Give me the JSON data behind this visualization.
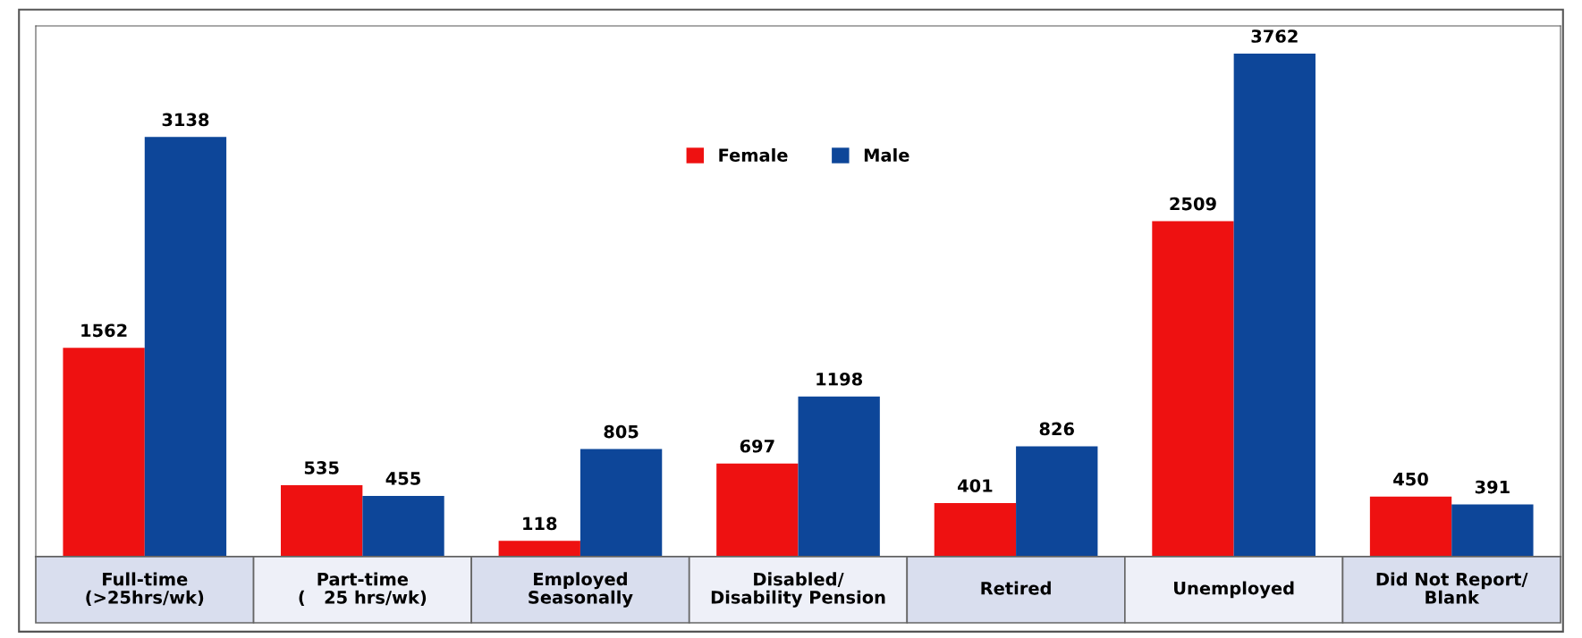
{
  "chart_data": {
    "type": "bar",
    "categories": [
      "Full-time\n(>25hrs/wk)",
      "Part-time\n(   25 hrs/wk)",
      "Employed\nSeasonally",
      "Disabled/\nDisability Pension",
      "Retired",
      "Unemployed",
      "Did Not Report/\nBlank"
    ],
    "series": [
      {
        "name": "Female",
        "color": "#ee1111",
        "values": [
          1562,
          535,
          118,
          697,
          401,
          2509,
          450
        ]
      },
      {
        "name": "Male",
        "color": "#0d4699",
        "values": [
          3138,
          455,
          805,
          1198,
          826,
          3762,
          391
        ]
      }
    ],
    "data_labels": true,
    "legend": "top"
  }
}
